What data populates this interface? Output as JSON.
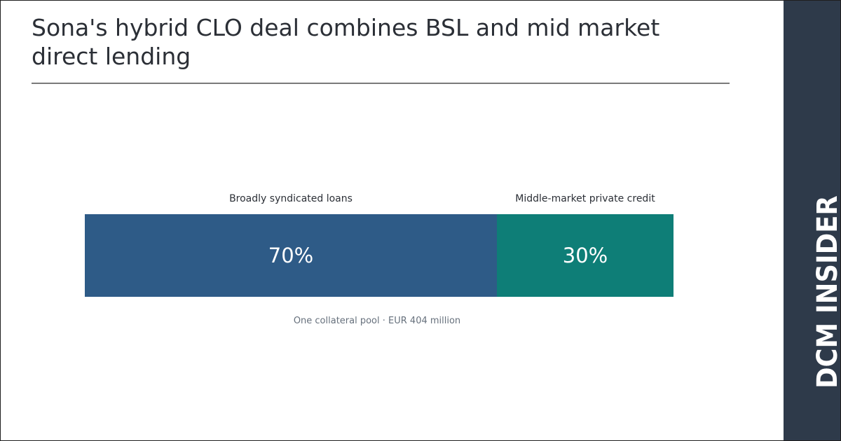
{
  "title": "Sona's hybrid CLO deal combines BSL and mid market direct lending",
  "brand": {
    "name": "DCM INSIDER",
    "background": "#2e3a4a",
    "text_color": "#ffffff"
  },
  "chart_data": {
    "type": "bar",
    "orientation": "horizontal-stacked",
    "segments": [
      {
        "name": "Broadly syndicated loans",
        "value": 70,
        "value_label": "70%",
        "color": "#2e5b87"
      },
      {
        "name": "Middle-market private credit",
        "value": 30,
        "value_label": "30%",
        "color": "#0e7e77"
      }
    ],
    "total": 100,
    "caption": "One collateral pool · EUR 404 million"
  }
}
